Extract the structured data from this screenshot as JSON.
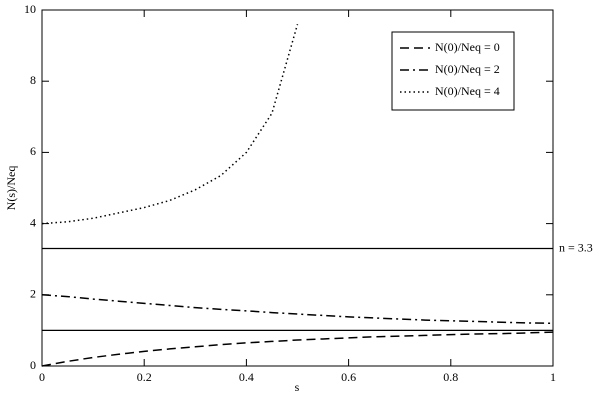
{
  "chart_data": {
    "type": "line",
    "x_label": "s",
    "y_label": "N(s)/Neq",
    "x": [
      0,
      0.05,
      0.1,
      0.15,
      0.2,
      0.25,
      0.3,
      0.35,
      0.4,
      0.45,
      0.5,
      0.55,
      0.6,
      0.65,
      0.7,
      0.75,
      0.8,
      0.85,
      0.9,
      0.95,
      1
    ],
    "series": [
      {
        "name": "N(0)/Neq = 0",
        "color": "#000000",
        "dash": "dashed",
        "values": [
          0,
          0.13,
          0.24,
          0.33,
          0.41,
          0.48,
          0.54,
          0.6,
          0.65,
          0.69,
          0.73,
          0.76,
          0.79,
          0.82,
          0.84,
          0.86,
          0.88,
          0.9,
          0.91,
          0.93,
          0.95
        ]
      },
      {
        "name": "N(0)/Neq = 2",
        "color": "#000000",
        "dash": "dashdot",
        "values": [
          2,
          1.95,
          1.88,
          1.82,
          1.76,
          1.7,
          1.64,
          1.59,
          1.55,
          1.5,
          1.46,
          1.42,
          1.38,
          1.35,
          1.32,
          1.29,
          1.27,
          1.25,
          1.23,
          1.21,
          1.2
        ]
      },
      {
        "name": "N(0)/Neq = 4",
        "color": "#000000",
        "dash": "dotted",
        "values": [
          4,
          4.05,
          4.15,
          4.3,
          4.45,
          4.65,
          4.95,
          5.35,
          6.0,
          7.1,
          9.6,
          null,
          null,
          null,
          null,
          null,
          null,
          null,
          null,
          null,
          null
        ]
      }
    ],
    "reference_lines": [
      {
        "y": 1
      },
      {
        "y": 3.3,
        "label": "n = 3.3"
      }
    ],
    "xlim": [
      0,
      1
    ],
    "xticks": [
      0,
      0.2,
      0.4,
      0.6,
      0.8,
      1
    ],
    "ylim": [
      0,
      10
    ],
    "yticks": [
      0,
      2,
      4,
      6,
      8,
      10
    ],
    "legend": "upper right"
  }
}
